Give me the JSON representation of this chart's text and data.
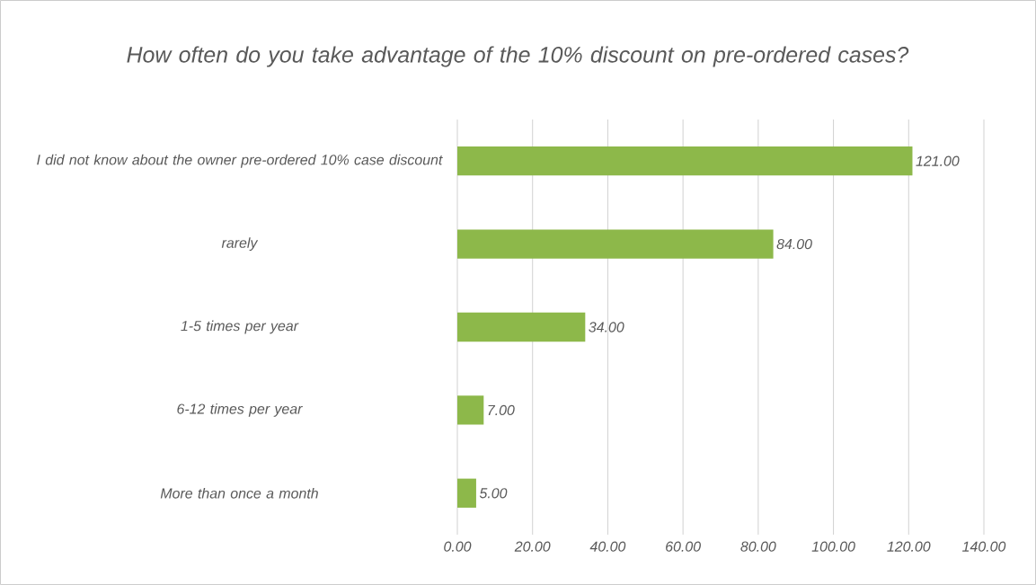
{
  "chart_data": {
    "type": "bar",
    "orientation": "horizontal",
    "title": "How often do you take advantage of the 10% discount on pre-ordered cases?",
    "categories": [
      "I did not know about the owner pre-ordered 10% case discount",
      "rarely",
      "1-5 times per year",
      "6-12 times per year",
      "More than once a month"
    ],
    "values": [
      121,
      84,
      34,
      7,
      5
    ],
    "value_labels": [
      "121.00",
      "84.00",
      "34.00",
      "7.00",
      "5.00"
    ],
    "color": "#8db84a",
    "xlim": [
      0,
      140
    ],
    "xticks": [
      {
        "value": 0,
        "label": "0.00"
      },
      {
        "value": 20,
        "label": "20.00"
      },
      {
        "value": 40,
        "label": "40.00"
      },
      {
        "value": 60,
        "label": "60.00"
      },
      {
        "value": 80,
        "label": "80.00"
      },
      {
        "value": 100,
        "label": "100.00"
      },
      {
        "value": 120,
        "label": "120.00"
      },
      {
        "value": 140,
        "label": "140.00"
      }
    ],
    "grid": "x"
  }
}
